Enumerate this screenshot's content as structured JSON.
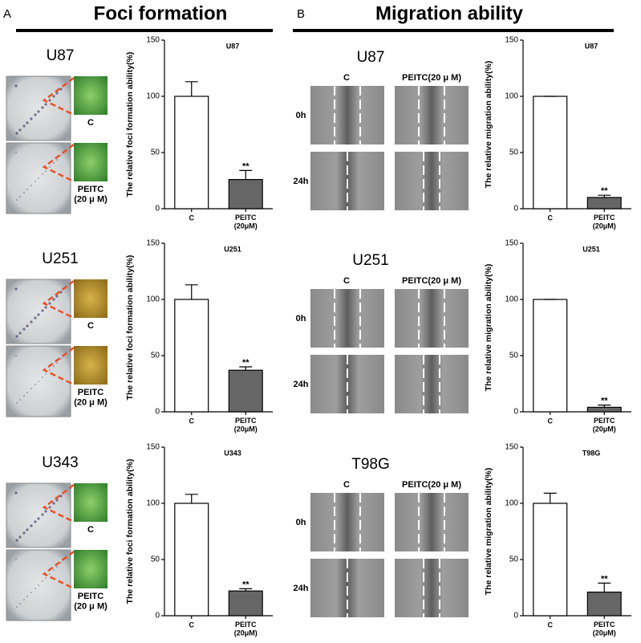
{
  "panels": [
    {
      "letter": "A",
      "title": "Foci formation"
    },
    {
      "letter": "B",
      "title": "Migration ability"
    }
  ],
  "foci_rows": [
    {
      "cell": "U87",
      "control": "C",
      "treated": "PEITC\n(20 μ M)"
    },
    {
      "cell": "U251",
      "control": "C",
      "treated": "PEITC\n(20 μ M)"
    },
    {
      "cell": "U343",
      "control": "C",
      "treated": "PEITC\n(20 μ M)"
    }
  ],
  "migration_rows": [
    {
      "cell": "U87",
      "control": "C",
      "treated": "PEITC(20 μ M)",
      "times": [
        "0h",
        "24h"
      ]
    },
    {
      "cell": "U251",
      "control": "C",
      "treated": "PEITC(20 μ M)",
      "times": [
        "0h",
        "24h"
      ]
    },
    {
      "cell": "T98G",
      "control": "C",
      "treated": "PEITC(20 μ M)",
      "times": [
        "0h",
        "24h"
      ]
    }
  ],
  "chart_data": [
    {
      "type": "bar",
      "title": "U87",
      "ylabel": "The relative foci formation ability(%)",
      "categories": [
        "C",
        "PEITC\n(20μM)"
      ],
      "values": [
        100,
        26
      ],
      "errors": [
        13,
        8
      ],
      "significance": [
        null,
        "**"
      ],
      "colors": [
        "#ffffff",
        "#666666"
      ],
      "ylim": [
        0,
        150
      ],
      "yticks": [
        0,
        50,
        100,
        150
      ]
    },
    {
      "type": "bar",
      "title": "U251",
      "ylabel": "The relative foci formation ability(%)",
      "categories": [
        "C",
        "PEITC\n(20μM)"
      ],
      "values": [
        100,
        37
      ],
      "errors": [
        13,
        3
      ],
      "significance": [
        null,
        "**"
      ],
      "colors": [
        "#ffffff",
        "#666666"
      ],
      "ylim": [
        0,
        150
      ],
      "yticks": [
        0,
        50,
        100,
        150
      ]
    },
    {
      "type": "bar",
      "title": "U343",
      "ylabel": "The relative foci formation ability(%)",
      "categories": [
        "C",
        "PEITC\n(20μM)"
      ],
      "values": [
        100,
        22
      ],
      "errors": [
        8,
        2
      ],
      "significance": [
        null,
        "**"
      ],
      "colors": [
        "#ffffff",
        "#666666"
      ],
      "ylim": [
        0,
        150
      ],
      "yticks": [
        0,
        50,
        100,
        150
      ]
    },
    {
      "type": "bar",
      "title": "U87",
      "ylabel": "The relative migration ability(%)",
      "categories": [
        "C",
        "PEITC\n(20μM)"
      ],
      "values": [
        100,
        10
      ],
      "errors": [
        0,
        2
      ],
      "significance": [
        null,
        "**"
      ],
      "colors": [
        "#ffffff",
        "#666666"
      ],
      "ylim": [
        0,
        150
      ],
      "yticks": [
        0,
        50,
        100,
        150
      ]
    },
    {
      "type": "bar",
      "title": "U251",
      "ylabel": "The relative migration ability(%)",
      "categories": [
        "C",
        "PEITC\n(20μM)"
      ],
      "values": [
        100,
        4
      ],
      "errors": [
        0,
        2
      ],
      "significance": [
        null,
        "**"
      ],
      "colors": [
        "#ffffff",
        "#666666"
      ],
      "ylim": [
        0,
        150
      ],
      "yticks": [
        0,
        50,
        100,
        150
      ]
    },
    {
      "type": "bar",
      "title": "T98G",
      "ylabel": "The relative migration ability(%)",
      "categories": [
        "C",
        "PEITC\n(20μM)"
      ],
      "values": [
        100,
        21
      ],
      "errors": [
        9,
        8
      ],
      "significance": [
        null,
        "**"
      ],
      "colors": [
        "#ffffff",
        "#666666"
      ],
      "ylim": [
        0,
        150
      ],
      "yticks": [
        0,
        50,
        100,
        150
      ]
    }
  ]
}
